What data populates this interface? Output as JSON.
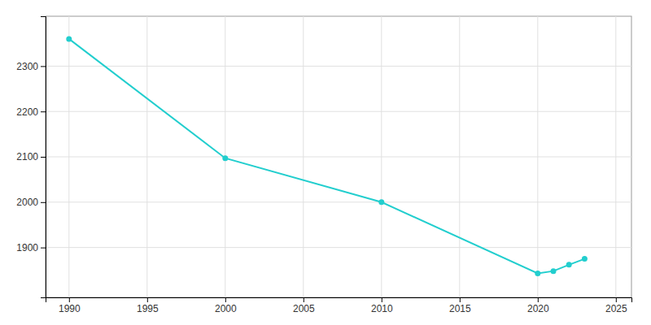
{
  "chart_data": {
    "type": "line",
    "x": [
      1990,
      2000,
      2010,
      2020,
      2021,
      2022,
      2023
    ],
    "values": [
      2360,
      2097,
      2000,
      1843,
      1848,
      1862,
      1875
    ],
    "color": "#22CECE",
    "marker": "circle",
    "xlim": [
      1988.5,
      2026
    ],
    "ylim": [
      1790,
      2410
    ],
    "xticks": [
      1990,
      1995,
      2000,
      2005,
      2010,
      2015,
      2020,
      2025
    ],
    "yticks": [
      1900,
      2000,
      2100,
      2200,
      2300
    ],
    "grid": true
  }
}
